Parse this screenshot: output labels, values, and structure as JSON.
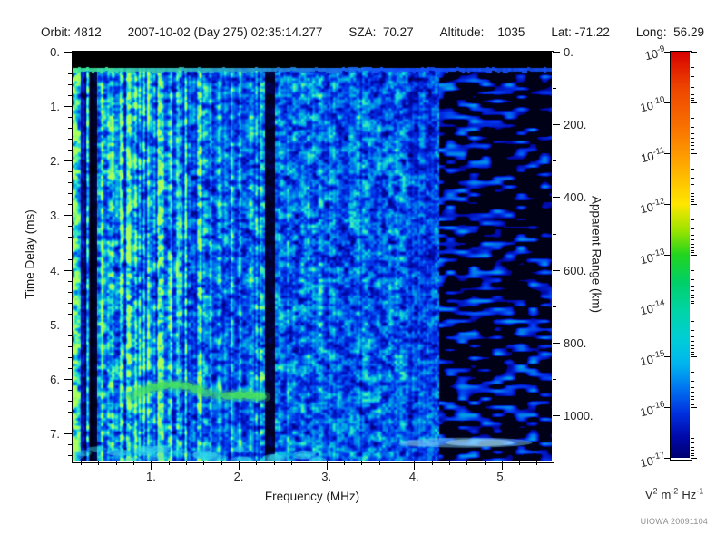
{
  "header": {
    "segments": [
      "Orbit: 4812",
      "2007-10-02 (Day 275) 02:35:14.277",
      "SZA:  70.27",
      "Altitude:    1035",
      "Lat: -71.22",
      "Long:  56.29"
    ]
  },
  "axes": {
    "x_title": "Frequency (MHz)",
    "x_tick_labels": [
      "1.",
      "2.",
      "3.",
      "4.",
      "5."
    ],
    "left_title": "Time Delay (ms)",
    "left_tick_labels": [
      "0.",
      "1.",
      "2.",
      "3.",
      "4.",
      "5.",
      "6.",
      "7."
    ],
    "right_title": "Apparent Range (km)",
    "right_tick_labels": [
      "0.",
      "200.",
      "400.",
      "600.",
      "800.",
      "1000."
    ]
  },
  "colorbar": {
    "tick_exponents": [
      "-9",
      "-10",
      "-11",
      "-12",
      "-13",
      "-14",
      "-15",
      "-16",
      "-17"
    ],
    "base": "10",
    "unit_parts": [
      {
        "base": "V",
        "exp": "2"
      },
      {
        "base": "m",
        "exp": "-2"
      },
      {
        "base": "Hz",
        "exp": "-1"
      }
    ],
    "palette": "rainbow"
  },
  "footer": {
    "credit": "UIOWA 20091104"
  },
  "chart_data": {
    "type": "heatmap",
    "title": "Radar sounder ionogram spectrogram (Orbit 4812, 2007-10-02 02:35:14.277)",
    "xlabel": "Frequency (MHz)",
    "x_range": [
      0.105,
      5.571
    ],
    "x_major_ticks": [
      1,
      2,
      3,
      4,
      5
    ],
    "x_minor_step": 0.2,
    "ylabel": "Time Delay (ms)",
    "y_range_ms": [
      0,
      7.5
    ],
    "y_major_ticks_ms": [
      0,
      1,
      2,
      3,
      4,
      5,
      6,
      7
    ],
    "y_minor_step_ms": 0.2,
    "right_axis_label": "Apparent Range (km)",
    "right_km_per_ms": 149.9,
    "right_major_ticks_km": [
      0,
      200,
      400,
      600,
      800,
      1000
    ],
    "right_minor_step_km": 100,
    "colorbar_log10_range": [
      -9,
      -17
    ],
    "colorbar_unit": "V^2 m^-2 Hz^-1",
    "grid": false,
    "legend_position": "right-colorbar",
    "texture_zones": [
      {
        "f_from": 0.105,
        "f_to": 1.58,
        "amp": 0.97,
        "style": "bright cyan vertical-streak noise"
      },
      {
        "f_from": 1.58,
        "f_to": 2.29,
        "amp": 0.8,
        "style": "medium cyan-blue noise"
      },
      {
        "f_from": 2.29,
        "f_to": 2.41,
        "amp": 0.12,
        "style": "dark attenuation band"
      },
      {
        "f_from": 2.41,
        "f_to": 3.05,
        "amp": 0.74,
        "style": "medium blue noise"
      },
      {
        "f_from": 3.05,
        "f_to": 3.95,
        "amp": 0.68,
        "style": "medium blue noise"
      },
      {
        "f_from": 3.95,
        "f_to": 4.28,
        "amp": 0.58,
        "style": "dimming blue noise"
      },
      {
        "f_from": 4.28,
        "f_to": 5.571,
        "amp": 0.62,
        "style": "sparse blue blobs on black"
      }
    ],
    "dark_gaps_f": [
      [
        0.195,
        0.25,
        0.35
      ],
      [
        0.3,
        0.375,
        0.1
      ]
    ],
    "top_black_band_ms": [
      0,
      0.3
    ],
    "leader_line_ms": 0.33,
    "vertical_lines": [
      {
        "f": 1.315,
        "t0": 0.33,
        "t1": 6.6,
        "rgb": [
          80,
          240,
          205
        ],
        "alpha": 0.55
      },
      {
        "f": 2.17,
        "t0": 4.5,
        "t1": 7.5,
        "rgb": [
          60,
          205,
          220
        ],
        "alpha": 0.28
      }
    ],
    "echo_trace": {
      "color_core": [
        70,
        225,
        95
      ],
      "color_halo": [
        60,
        205,
        125
      ],
      "points": [
        [
          0.8,
          6.33,
          0.5
        ],
        [
          0.9,
          6.23,
          0.7
        ],
        [
          1.02,
          6.16,
          0.85
        ],
        [
          1.14,
          6.12,
          0.9
        ],
        [
          1.27,
          6.11,
          0.9
        ],
        [
          1.4,
          6.13,
          0.85
        ],
        [
          1.52,
          6.19,
          0.8
        ],
        [
          1.63,
          6.26,
          0.6
        ],
        [
          1.75,
          6.3,
          0.45
        ],
        [
          1.88,
          6.31,
          0.8
        ],
        [
          2.0,
          6.3,
          0.95
        ],
        [
          2.12,
          6.3,
          0.95
        ],
        [
          2.24,
          6.33,
          0.8
        ]
      ]
    },
    "bottom_left_band": {
      "f_to": 2.95,
      "t_from": 7.28,
      "rgb": [
        50,
        215,
        235
      ]
    },
    "bottom_right_streak": {
      "f_center": 4.6,
      "t": 7.17,
      "f_halfwidth": 0.75,
      "rgb": [
        120,
        205,
        245
      ]
    }
  }
}
